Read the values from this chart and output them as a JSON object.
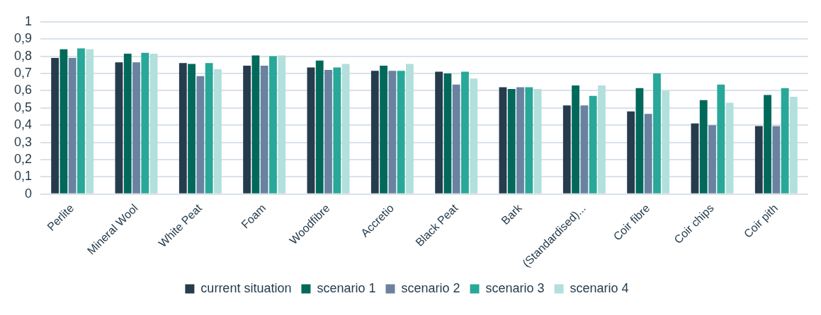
{
  "chart_data": {
    "type": "bar",
    "categories": [
      "Perlite",
      "Mineral Wool",
      "White Peat",
      "Foam",
      "Woodfibre",
      "Accretio",
      "Black Peat",
      "Bark",
      "(Standardised)...",
      "Coir fibre",
      "Coir chips",
      "Coir pith"
    ],
    "series": [
      {
        "name": "current situation",
        "color": "#263c4c",
        "values": [
          0.79,
          0.765,
          0.76,
          0.745,
          0.735,
          0.715,
          0.71,
          0.62,
          0.515,
          0.48,
          0.41,
          0.395
        ]
      },
      {
        "name": "scenario 1",
        "color": "#00695a",
        "values": [
          0.84,
          0.815,
          0.755,
          0.805,
          0.775,
          0.745,
          0.7,
          0.61,
          0.63,
          0.615,
          0.545,
          0.575
        ]
      },
      {
        "name": "scenario 2",
        "color": "#6a82a0",
        "values": [
          0.79,
          0.765,
          0.685,
          0.745,
          0.72,
          0.715,
          0.635,
          0.62,
          0.515,
          0.465,
          0.4,
          0.395
        ]
      },
      {
        "name": "scenario 3",
        "color": "#27a899",
        "values": [
          0.845,
          0.82,
          0.76,
          0.8,
          0.735,
          0.715,
          0.71,
          0.62,
          0.57,
          0.7,
          0.635,
          0.615
        ]
      },
      {
        "name": "scenario 4",
        "color": "#b3dfdc",
        "values": [
          0.84,
          0.815,
          0.725,
          0.805,
          0.755,
          0.755,
          0.67,
          0.61,
          0.63,
          0.6,
          0.53,
          0.565
        ]
      }
    ],
    "ylim": [
      0,
      1
    ],
    "yticks": [
      {
        "value": 0,
        "label": "0"
      },
      {
        "value": 0.1,
        "label": "0,1"
      },
      {
        "value": 0.2,
        "label": "0,2"
      },
      {
        "value": 0.3,
        "label": "0,3"
      },
      {
        "value": 0.4,
        "label": "0,4"
      },
      {
        "value": 0.5,
        "label": "0,5"
      },
      {
        "value": 0.6,
        "label": "0,6"
      },
      {
        "value": 0.7,
        "label": "0,7"
      },
      {
        "value": 0.8,
        "label": "0,8"
      },
      {
        "value": 0.9,
        "label": "0,9"
      },
      {
        "value": 1,
        "label": "1"
      }
    ],
    "grid": "y",
    "legend": "bottom"
  }
}
